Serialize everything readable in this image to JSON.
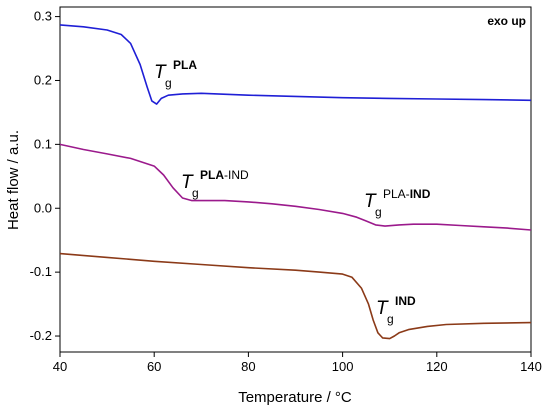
{
  "chart_data": {
    "type": "line",
    "xlabel": "Temperature / °C",
    "ylabel": "Heat flow / a.u.",
    "xlim": [
      40,
      140
    ],
    "ylim": [
      -0.225,
      0.315
    ],
    "x_ticks": [
      "40",
      "60",
      "80",
      "100",
      "120",
      "140"
    ],
    "y_ticks": [
      "-0.2",
      "-0.1",
      "0.0",
      "0.1",
      "0.2",
      "0.3"
    ],
    "grid": false,
    "corner_note": "exo up",
    "series": [
      {
        "color": "#1f1fd6",
        "points": [
          [
            40,
            0.287
          ],
          [
            45,
            0.284
          ],
          [
            50,
            0.279
          ],
          [
            53,
            0.272
          ],
          [
            55,
            0.258
          ],
          [
            57,
            0.225
          ],
          [
            58.5,
            0.19
          ],
          [
            59.5,
            0.168
          ],
          [
            60.5,
            0.163
          ],
          [
            61.5,
            0.172
          ],
          [
            63,
            0.177
          ],
          [
            66,
            0.179
          ],
          [
            70,
            0.18
          ],
          [
            80,
            0.177
          ],
          [
            90,
            0.175
          ],
          [
            100,
            0.173
          ],
          [
            110,
            0.172
          ],
          [
            120,
            0.171
          ],
          [
            130,
            0.17
          ],
          [
            140,
            0.169
          ]
        ]
      },
      {
        "color": "#9b1a8c",
        "points": [
          [
            40,
            0.1
          ],
          [
            45,
            0.092
          ],
          [
            50,
            0.085
          ],
          [
            55,
            0.078
          ],
          [
            60,
            0.066
          ],
          [
            62,
            0.052
          ],
          [
            64,
            0.032
          ],
          [
            66,
            0.016
          ],
          [
            68,
            0.012
          ],
          [
            70,
            0.012
          ],
          [
            75,
            0.012
          ],
          [
            80,
            0.01
          ],
          [
            85,
            0.007
          ],
          [
            90,
            0.003
          ],
          [
            95,
            -0.002
          ],
          [
            100,
            -0.008
          ],
          [
            103,
            -0.014
          ],
          [
            105,
            -0.02
          ],
          [
            107,
            -0.026
          ],
          [
            109,
            -0.028
          ],
          [
            112,
            -0.026
          ],
          [
            115,
            -0.025
          ],
          [
            120,
            -0.025
          ],
          [
            125,
            -0.027
          ],
          [
            130,
            -0.029
          ],
          [
            135,
            -0.031
          ],
          [
            140,
            -0.034
          ]
        ]
      },
      {
        "color": "#8b3a18",
        "points": [
          [
            40,
            -0.071
          ],
          [
            50,
            -0.077
          ],
          [
            60,
            -0.083
          ],
          [
            70,
            -0.088
          ],
          [
            80,
            -0.093
          ],
          [
            90,
            -0.097
          ],
          [
            95,
            -0.1
          ],
          [
            100,
            -0.103
          ],
          [
            102,
            -0.108
          ],
          [
            104,
            -0.125
          ],
          [
            105.5,
            -0.15
          ],
          [
            106.5,
            -0.175
          ],
          [
            107.5,
            -0.195
          ],
          [
            108.5,
            -0.203
          ],
          [
            110,
            -0.204
          ],
          [
            111,
            -0.2
          ],
          [
            112,
            -0.195
          ],
          [
            114,
            -0.19
          ],
          [
            118,
            -0.185
          ],
          [
            122,
            -0.182
          ],
          [
            130,
            -0.18
          ],
          [
            140,
            -0.179
          ]
        ]
      }
    ],
    "annotations": [
      {
        "main": "T",
        "sub": "g",
        "sup_parts": [
          {
            "text": "PLA",
            "bold": true
          }
        ]
      },
      {
        "main": "T",
        "sub": "g",
        "sup_parts": [
          {
            "text": "PLA",
            "bold": true
          },
          {
            "text": "-IND",
            "bold": false
          }
        ]
      },
      {
        "main": "T",
        "sub": "g",
        "sup_parts": [
          {
            "text": "PLA-",
            "bold": false
          },
          {
            "text": "IND",
            "bold": true
          }
        ]
      },
      {
        "main": "T",
        "sub": "g",
        "sup_parts": [
          {
            "text": "IND",
            "bold": true
          }
        ]
      }
    ]
  }
}
